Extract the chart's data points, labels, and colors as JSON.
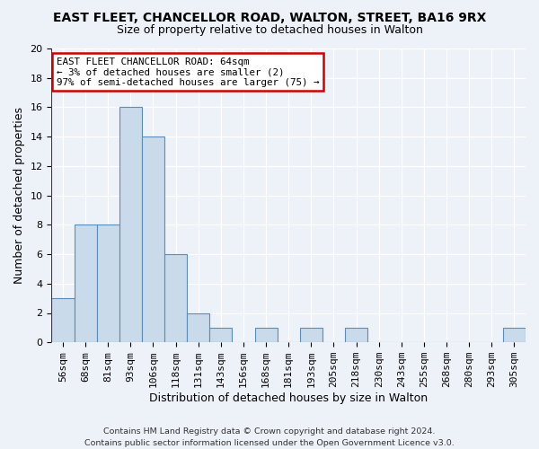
{
  "title": "EAST FLEET, CHANCELLOR ROAD, WALTON, STREET, BA16 9RX",
  "subtitle": "Size of property relative to detached houses in Walton",
  "xlabel": "Distribution of detached houses by size in Walton",
  "ylabel": "Number of detached properties",
  "categories": [
    "56sqm",
    "68sqm",
    "81sqm",
    "93sqm",
    "106sqm",
    "118sqm",
    "131sqm",
    "143sqm",
    "156sqm",
    "168sqm",
    "181sqm",
    "193sqm",
    "205sqm",
    "218sqm",
    "230sqm",
    "243sqm",
    "255sqm",
    "268sqm",
    "280sqm",
    "293sqm",
    "305sqm"
  ],
  "values": [
    3,
    8,
    8,
    16,
    14,
    6,
    2,
    1,
    0,
    1,
    0,
    1,
    0,
    1,
    0,
    0,
    0,
    0,
    0,
    0,
    1
  ],
  "bar_color": "#c9daea",
  "bar_edge_color": "#5b8db8",
  "background_color": "#edf2f9",
  "grid_color": "#ffffff",
  "red_line_x": -0.5,
  "annotation_line1": "EAST FLEET CHANCELLOR ROAD: 64sqm",
  "annotation_line2": "← 3% of detached houses are smaller (2)",
  "annotation_line3": "97% of semi-detached houses are larger (75) →",
  "annotation_box_color": "#ffffff",
  "annotation_box_edge": "#cc0000",
  "footer": "Contains HM Land Registry data © Crown copyright and database right 2024.\nContains public sector information licensed under the Open Government Licence v3.0.",
  "ylim": [
    0,
    20
  ],
  "yticks": [
    0,
    2,
    4,
    6,
    8,
    10,
    12,
    14,
    16,
    18,
    20
  ],
  "title_fontsize": 10,
  "subtitle_fontsize": 9,
  "tick_fontsize": 8,
  "ylabel_fontsize": 9,
  "xlabel_fontsize": 9
}
